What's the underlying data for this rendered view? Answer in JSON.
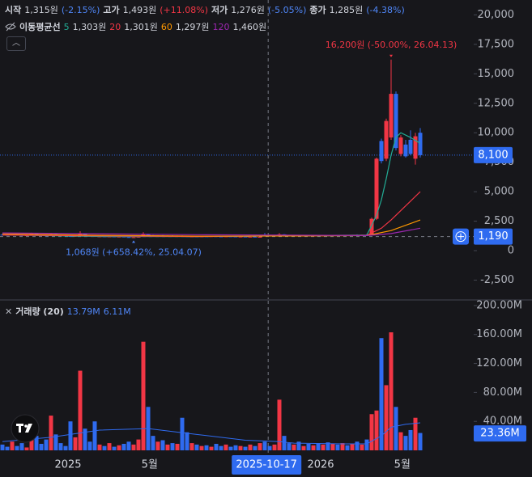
{
  "header": {
    "items": [
      {
        "label": "시작",
        "value": "1,315원",
        "change": "(-2.15%)"
      },
      {
        "label": "고가",
        "value": "1,493원",
        "change": "(+11.08%)"
      },
      {
        "label": "저가",
        "value": "1,276원",
        "change": "(-5.05%)"
      },
      {
        "label": "종가",
        "value": "1,285원",
        "change": "(-4.38%)"
      }
    ],
    "ma_title": "이동평균선"
  },
  "chart_data": {
    "type": "candlestick",
    "up_color": "#f23645",
    "down_color": "#2f6bf0",
    "ylim": [
      -4115,
      21262
    ],
    "yticks": [
      {
        "value": 20000,
        "label": "20,000"
      },
      {
        "value": 17500,
        "label": "17,500"
      },
      {
        "value": 15000,
        "label": "15,000"
      },
      {
        "value": 12500,
        "label": "12,500"
      },
      {
        "value": 10000,
        "label": "10,000"
      },
      {
        "value": 7500,
        "label": "7,500"
      },
      {
        "value": 5000,
        "label": "5,000"
      },
      {
        "value": 2500,
        "label": "2,500"
      },
      0,
      {
        "value": -2500,
        "label": "-2,500"
      }
    ],
    "xticks": [
      {
        "value": 13.5,
        "label": "2025"
      },
      {
        "value": 30.3,
        "label": "5월"
      },
      {
        "value": 65.5,
        "label": "2026"
      },
      {
        "value": 82.3,
        "label": "5월"
      }
    ],
    "ohlc": [
      [
        1350,
        1420,
        1300,
        1330
      ],
      [
        1330,
        1380,
        1290,
        1310
      ],
      [
        1310,
        1400,
        1280,
        1360
      ],
      [
        1360,
        1390,
        1300,
        1320
      ],
      [
        1320,
        1350,
        1260,
        1280
      ],
      [
        1280,
        1340,
        1250,
        1300
      ],
      [
        1300,
        1520,
        1280,
        1450
      ],
      [
        1450,
        1480,
        1330,
        1350
      ],
      [
        1350,
        1370,
        1270,
        1290
      ],
      [
        1290,
        1330,
        1240,
        1260
      ],
      [
        1260,
        1480,
        1250,
        1400
      ],
      [
        1400,
        1420,
        1300,
        1320
      ],
      [
        1320,
        1340,
        1250,
        1270
      ],
      [
        1270,
        1300,
        1220,
        1240
      ],
      [
        1240,
        1260,
        1150,
        1180
      ],
      [
        1180,
        1280,
        1170,
        1250
      ],
      [
        1250,
        1650,
        1240,
        1420
      ],
      [
        1420,
        1450,
        1280,
        1300
      ],
      [
        1300,
        1320,
        1220,
        1240
      ],
      [
        1240,
        1270,
        1160,
        1190
      ],
      [
        1190,
        1230,
        1150,
        1210
      ],
      [
        1210,
        1250,
        1170,
        1180
      ],
      [
        1180,
        1220,
        1140,
        1200
      ],
      [
        1200,
        1240,
        1160,
        1170
      ],
      [
        1170,
        1210,
        1120,
        1190
      ],
      [
        1190,
        1220,
        1130,
        1150
      ],
      [
        1150,
        1180,
        1090,
        1110
      ],
      [
        1110,
        1160,
        1068,
        1140
      ],
      [
        1140,
        1200,
        1110,
        1180
      ],
      [
        1180,
        1560,
        1170,
        1380
      ],
      [
        1380,
        1420,
        1260,
        1290
      ],
      [
        1290,
        1320,
        1230,
        1260
      ],
      [
        1260,
        1300,
        1220,
        1280
      ],
      [
        1280,
        1310,
        1230,
        1240
      ],
      [
        1240,
        1290,
        1210,
        1270
      ],
      [
        1270,
        1300,
        1220,
        1230
      ],
      [
        1230,
        1280,
        1200,
        1260
      ],
      [
        1260,
        1290,
        1210,
        1220
      ],
      [
        1220,
        1250,
        1150,
        1170
      ],
      [
        1170,
        1220,
        1140,
        1200
      ],
      [
        1200,
        1230,
        1160,
        1180
      ],
      [
        1180,
        1220,
        1150,
        1210
      ],
      [
        1210,
        1240,
        1170,
        1190
      ],
      [
        1190,
        1230,
        1160,
        1220
      ],
      [
        1220,
        1250,
        1180,
        1200
      ],
      [
        1200,
        1240,
        1170,
        1190
      ],
      [
        1190,
        1230,
        1160,
        1210
      ],
      [
        1210,
        1240,
        1180,
        1200
      ],
      [
        1200,
        1220,
        1150,
        1170
      ],
      [
        1170,
        1210,
        1140,
        1190
      ],
      [
        1190,
        1220,
        1150,
        1160
      ],
      [
        1160,
        1200,
        1130,
        1180
      ],
      [
        1180,
        1210,
        1140,
        1150
      ],
      [
        1150,
        1190,
        1120,
        1170
      ],
      [
        1315,
        1493,
        1276,
        1285
      ],
      [
        1285,
        1320,
        1230,
        1250
      ],
      [
        1250,
        1300,
        1220,
        1280
      ],
      [
        1280,
        1480,
        1260,
        1380
      ],
      [
        1380,
        1400,
        1280,
        1300
      ],
      [
        1300,
        1330,
        1250,
        1270
      ],
      [
        1270,
        1310,
        1240,
        1290
      ],
      [
        1290,
        1320,
        1250,
        1260
      ],
      [
        1260,
        1300,
        1230,
        1280
      ],
      [
        1280,
        1310,
        1240,
        1250
      ],
      [
        1250,
        1290,
        1220,
        1270
      ],
      [
        1270,
        1300,
        1240,
        1260
      ],
      [
        1260,
        1300,
        1230,
        1290
      ],
      [
        1290,
        1320,
        1250,
        1270
      ],
      [
        1270,
        1310,
        1240,
        1300
      ],
      [
        1300,
        1330,
        1260,
        1280
      ],
      [
        1280,
        1320,
        1250,
        1310
      ],
      [
        1310,
        1340,
        1270,
        1290
      ],
      [
        1290,
        1330,
        1260,
        1320
      ],
      [
        1320,
        1380,
        1280,
        1300
      ],
      [
        1300,
        1360,
        1270,
        1340
      ],
      [
        1340,
        1420,
        1300,
        1330
      ],
      [
        1330,
        2800,
        1320,
        2700
      ],
      [
        2700,
        7900,
        2600,
        7800
      ],
      [
        9300,
        9500,
        7400,
        7600
      ],
      [
        7800,
        11200,
        7600,
        11000
      ],
      [
        9600,
        16200,
        9400,
        13300
      ],
      [
        13300,
        13500,
        8500,
        8700
      ],
      [
        8200,
        9800,
        8000,
        9600
      ],
      [
        9000,
        9400,
        7900,
        8000
      ],
      [
        9400,
        10200,
        8100,
        8200
      ],
      [
        7800,
        10000,
        7300,
        9700
      ],
      [
        10000,
        10400,
        7900,
        8100
      ]
    ],
    "ma_series": [
      {
        "name": "5",
        "color": "#22ab94",
        "legend_value": "1,303원",
        "x": [
          0,
          20,
          40,
          60,
          75,
          77,
          78,
          79,
          80,
          81,
          82,
          84,
          86
        ],
        "values": [
          1340,
          1200,
          1190,
          1270,
          1320,
          3000,
          4300,
          6100,
          8100,
          9600,
          10000,
          9600,
          9100
        ]
      },
      {
        "name": "20",
        "color": "#f23645",
        "legend_value": "1,301원",
        "x": [
          0,
          20,
          40,
          60,
          75,
          78,
          80,
          82,
          84,
          86
        ],
        "values": [
          1330,
          1250,
          1200,
          1260,
          1300,
          1900,
          2600,
          3400,
          4200,
          5000
        ]
      },
      {
        "name": "60",
        "color": "#ff9800",
        "legend_value": "1,297원",
        "x": [
          0,
          20,
          40,
          60,
          75,
          80,
          86
        ],
        "values": [
          1420,
          1300,
          1230,
          1240,
          1280,
          1700,
          2600
        ]
      },
      {
        "name": "120",
        "color": "#9c27b0",
        "legend_value": "1,460원",
        "x": [
          0,
          40,
          75,
          80,
          86
        ],
        "values": [
          1500,
          1350,
          1280,
          1450,
          1900
        ]
      }
    ],
    "last_price": {
      "value": 8100,
      "label": "8,100"
    },
    "crosshair": {
      "x": {
        "value": 54.7,
        "label": "2025-10-17"
      },
      "y": {
        "value": 1190,
        "label": "1,190"
      }
    },
    "annotations": [
      {
        "text": "16,200원 (-50.00%, 26.04.13)",
        "x": 80,
        "value": 16200,
        "color": "#f23645"
      },
      {
        "text": "1,068원 (+658.42%, 25.04.07)",
        "x": 27,
        "value": 1068,
        "color": "#4f86f7"
      }
    ],
    "volume": {
      "title": "거래량 (20)",
      "legend_values": [
        "13.79M",
        "6.11M"
      ],
      "ylim": [
        -3.3,
        206.6
      ],
      "yticks": [
        {
          "value": 200,
          "label": "200.00M"
        },
        {
          "value": 160,
          "label": "160.00M"
        },
        {
          "value": 120,
          "label": "120.00M"
        },
        {
          "value": 80,
          "label": "80.00M"
        },
        {
          "value": 40,
          "label": "40.00M"
        }
      ],
      "values": [
        8,
        5,
        12,
        6,
        10,
        4,
        45,
        20,
        9,
        15,
        48,
        22,
        10,
        6,
        40,
        18,
        110,
        30,
        12,
        40,
        8,
        6,
        10,
        5,
        7,
        9,
        12,
        8,
        15,
        150,
        60,
        20,
        12,
        14,
        8,
        10,
        9,
        45,
        25,
        10,
        8,
        6,
        7,
        5,
        9,
        6,
        8,
        5,
        7,
        6,
        5,
        8,
        6,
        10,
        12,
        6,
        8,
        70,
        20,
        10,
        8,
        12,
        6,
        9,
        7,
        10,
        8,
        11,
        9,
        8,
        10,
        7,
        9,
        12,
        8,
        15,
        50,
        55,
        155,
        90,
        163,
        60,
        25,
        20,
        28,
        45,
        24
      ],
      "ma": {
        "color": "#2f6bf0",
        "x": [
          0,
          10,
          20,
          30,
          40,
          50,
          57,
          60,
          70,
          75,
          78,
          80,
          83,
          86
        ],
        "values": [
          12,
          18,
          28,
          30,
          22,
          14,
          12,
          10,
          9,
          9,
          20,
          32,
          36,
          38
        ]
      },
      "last": {
        "value": 23.36,
        "label": "23.36M"
      }
    }
  }
}
